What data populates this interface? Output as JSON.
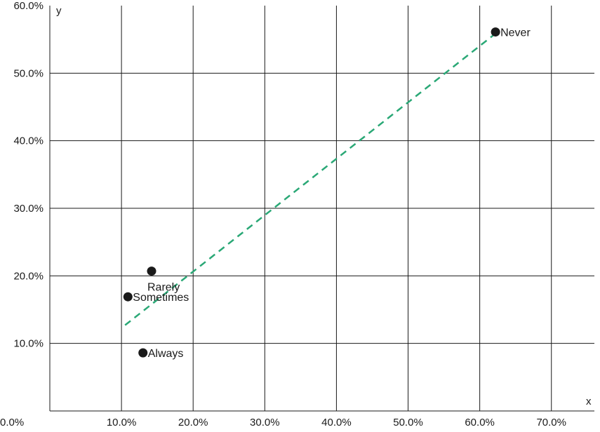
{
  "chart_data": {
    "type": "scatter",
    "title": "",
    "xlabel": "x",
    "ylabel": "y",
    "xlim": [
      0,
      76
    ],
    "ylim": [
      0,
      60
    ],
    "x_ticks": [
      0,
      10,
      20,
      30,
      40,
      50,
      60,
      70
    ],
    "y_ticks": [
      10,
      20,
      30,
      40,
      50,
      60
    ],
    "x_tick_labels": [
      "0.0%",
      "10.0%",
      "20.0%",
      "30.0%",
      "40.0%",
      "50.0%",
      "60.0%",
      "70.0%"
    ],
    "y_tick_labels": [
      "10.0%",
      "20.0%",
      "30.0%",
      "40.0%",
      "50.0%",
      "60.0%"
    ],
    "grid": true,
    "points": [
      {
        "label": "Never",
        "x": 62.2,
        "y": 56.1
      },
      {
        "label": "Rarely",
        "x": 14.2,
        "y": 20.7
      },
      {
        "label": "Sometimes",
        "x": 10.9,
        "y": 16.9
      },
      {
        "label": "Always",
        "x": 13.0,
        "y": 8.6
      }
    ],
    "trendline": {
      "style": "dashed",
      "color": "#2aa876",
      "from": {
        "x": 10.5,
        "y": 12.7
      },
      "to": {
        "x": 62.0,
        "y": 55.7
      }
    },
    "point_color": "#1a1a1a"
  }
}
